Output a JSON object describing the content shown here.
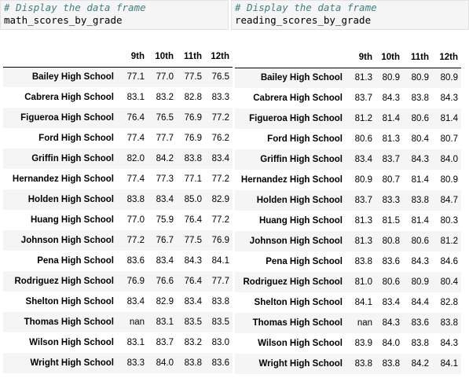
{
  "cells": {
    "left": {
      "comment": "# Display the data frame",
      "code": "math_scores_by_grade"
    },
    "right": {
      "comment": "# Display the data frame",
      "code": "reading_scores_by_grade"
    }
  },
  "math_table": {
    "columns": [
      "9th",
      "10th",
      "11th",
      "12th"
    ],
    "rows": [
      {
        "school": "Bailey High School",
        "values": [
          "77.1",
          "77.0",
          "77.5",
          "76.5"
        ]
      },
      {
        "school": "Cabrera High School",
        "values": [
          "83.1",
          "83.2",
          "82.8",
          "83.3"
        ]
      },
      {
        "school": "Figueroa High School",
        "values": [
          "76.4",
          "76.5",
          "76.9",
          "77.2"
        ]
      },
      {
        "school": "Ford High School",
        "values": [
          "77.4",
          "77.7",
          "76.9",
          "76.2"
        ]
      },
      {
        "school": "Griffin High School",
        "values": [
          "82.0",
          "84.2",
          "83.8",
          "83.4"
        ]
      },
      {
        "school": "Hernandez High School",
        "values": [
          "77.4",
          "77.3",
          "77.1",
          "77.2"
        ]
      },
      {
        "school": "Holden High School",
        "values": [
          "83.8",
          "83.4",
          "85.0",
          "82.9"
        ]
      },
      {
        "school": "Huang High School",
        "values": [
          "77.0",
          "75.9",
          "76.4",
          "77.2"
        ]
      },
      {
        "school": "Johnson High School",
        "values": [
          "77.2",
          "76.7",
          "77.5",
          "76.9"
        ]
      },
      {
        "school": "Pena High School",
        "values": [
          "83.6",
          "83.4",
          "84.3",
          "84.1"
        ]
      },
      {
        "school": "Rodriguez High School",
        "values": [
          "76.9",
          "76.6",
          "76.4",
          "77.7"
        ]
      },
      {
        "school": "Shelton High School",
        "values": [
          "83.4",
          "82.9",
          "83.4",
          "83.8"
        ]
      },
      {
        "school": "Thomas High School",
        "values": [
          "nan",
          "83.1",
          "83.5",
          "83.5"
        ]
      },
      {
        "school": "Wilson High School",
        "values": [
          "83.1",
          "83.7",
          "83.2",
          "83.0"
        ]
      },
      {
        "school": "Wright High School",
        "values": [
          "83.3",
          "84.0",
          "83.8",
          "83.6"
        ]
      }
    ]
  },
  "reading_table": {
    "columns": [
      "9th",
      "10th",
      "11th",
      "12th"
    ],
    "rows": [
      {
        "school": "Bailey High School",
        "values": [
          "81.3",
          "80.9",
          "80.9",
          "80.9"
        ]
      },
      {
        "school": "Cabrera High School",
        "values": [
          "83.7",
          "84.3",
          "83.8",
          "84.3"
        ]
      },
      {
        "school": "Figueroa High School",
        "values": [
          "81.2",
          "81.4",
          "80.6",
          "81.4"
        ]
      },
      {
        "school": "Ford High School",
        "values": [
          "80.6",
          "81.3",
          "80.4",
          "80.7"
        ]
      },
      {
        "school": "Griffin High School",
        "values": [
          "83.4",
          "83.7",
          "84.3",
          "84.0"
        ]
      },
      {
        "school": "Hernandez High School",
        "values": [
          "80.9",
          "80.7",
          "81.4",
          "80.9"
        ]
      },
      {
        "school": "Holden High School",
        "values": [
          "83.7",
          "83.3",
          "83.8",
          "84.7"
        ]
      },
      {
        "school": "Huang High School",
        "values": [
          "81.3",
          "81.5",
          "81.4",
          "80.3"
        ]
      },
      {
        "school": "Johnson High School",
        "values": [
          "81.3",
          "80.8",
          "80.6",
          "81.2"
        ]
      },
      {
        "school": "Pena High School",
        "values": [
          "83.8",
          "83.6",
          "84.3",
          "84.6"
        ]
      },
      {
        "school": "Rodriguez High School",
        "values": [
          "81.0",
          "80.6",
          "80.9",
          "80.4"
        ]
      },
      {
        "school": "Shelton High School",
        "values": [
          "84.1",
          "83.4",
          "84.4",
          "82.8"
        ]
      },
      {
        "school": "Thomas High School",
        "values": [
          "nan",
          "84.3",
          "83.6",
          "83.8"
        ]
      },
      {
        "school": "Wilson High School",
        "values": [
          "83.9",
          "84.0",
          "83.8",
          "84.3"
        ]
      },
      {
        "school": "Wright High School",
        "values": [
          "83.8",
          "83.8",
          "84.2",
          "84.1"
        ]
      }
    ]
  }
}
